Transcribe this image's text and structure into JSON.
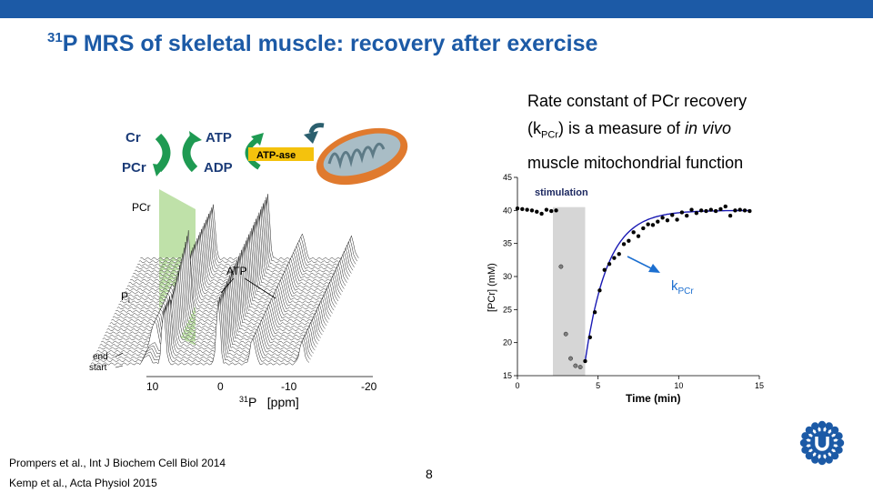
{
  "header": {
    "title_sup": "31",
    "title_text": "P MRS of skeletal muscle: recovery after exercise"
  },
  "description": {
    "line1": "Rate constant of PCr recovery",
    "line2_open": "(k",
    "line2_sub": "PCr",
    "line2_close": ") is a measure of ",
    "line2_italic": "in vivo",
    "line3": "muscle mitochondrial function"
  },
  "reaction_diagram": {
    "cr": "Cr",
    "pcr": "PCr",
    "atp": "ATP",
    "adp": "ADP",
    "atpase": "ATP-ase",
    "colors": {
      "arrow": "#1e9a52",
      "atpase_box": "#f4c20d",
      "mito": "#e07a2e"
    }
  },
  "spectrum": {
    "label_pcr": "PCr",
    "label_atp": "ATP",
    "label_pi": "P",
    "label_pi_sub": "i",
    "label_end": "end",
    "label_start": "start",
    "ticks": [
      "10",
      "0",
      "-10",
      "-20"
    ],
    "axis_sup": "31",
    "axis_label": "P   [ppm]",
    "highlight_color": "#b4dc9a"
  },
  "chart_data": {
    "type": "scatter",
    "title": "",
    "xlabel": "Time (min)",
    "ylabel": "[PCr] (mM)",
    "xlim": [
      0,
      15
    ],
    "ylim": [
      15,
      45
    ],
    "xticks": [
      0,
      5,
      10,
      15
    ],
    "yticks": [
      15,
      20,
      25,
      30,
      35,
      40,
      45
    ],
    "stimulation_label": "stimulation",
    "stimulation_range": [
      2.2,
      4.2
    ],
    "annotation_prefix": "k",
    "annotation_sub": "PCr",
    "baseline_points": [
      [
        0,
        40.3
      ],
      [
        0.3,
        40.2
      ],
      [
        0.6,
        40.1
      ],
      [
        0.9,
        40.0
      ],
      [
        1.2,
        39.8
      ],
      [
        1.5,
        39.5
      ],
      [
        1.8,
        40.1
      ],
      [
        2.1,
        39.9
      ],
      [
        2.4,
        40.0
      ]
    ],
    "stim_points": [
      [
        2.7,
        31.5
      ],
      [
        3.0,
        21.3
      ],
      [
        3.3,
        17.6
      ],
      [
        3.6,
        16.5
      ],
      [
        3.9,
        16.3
      ]
    ],
    "recovery_points": [
      [
        4.2,
        17.2
      ],
      [
        4.5,
        20.8
      ],
      [
        4.8,
        24.6
      ],
      [
        5.1,
        27.9
      ],
      [
        5.4,
        31.0
      ],
      [
        5.7,
        31.9
      ],
      [
        6.0,
        32.8
      ],
      [
        6.3,
        33.4
      ],
      [
        6.6,
        34.9
      ],
      [
        6.9,
        35.4
      ],
      [
        7.2,
        36.7
      ],
      [
        7.5,
        36.1
      ],
      [
        7.8,
        37.3
      ],
      [
        8.1,
        37.9
      ],
      [
        8.4,
        37.8
      ],
      [
        8.7,
        38.3
      ],
      [
        9.0,
        38.9
      ],
      [
        9.3,
        38.5
      ],
      [
        9.6,
        39.3
      ],
      [
        9.9,
        38.6
      ],
      [
        10.2,
        39.7
      ],
      [
        10.5,
        39.2
      ],
      [
        10.8,
        40.1
      ],
      [
        11.1,
        39.6
      ],
      [
        11.4,
        40.0
      ],
      [
        11.7,
        39.9
      ],
      [
        12.0,
        40.1
      ],
      [
        12.3,
        39.9
      ],
      [
        12.6,
        40.2
      ],
      [
        12.9,
        40.6
      ],
      [
        13.2,
        39.2
      ],
      [
        13.5,
        40.0
      ],
      [
        13.8,
        40.1
      ],
      [
        14.1,
        40.0
      ],
      [
        14.4,
        39.9
      ]
    ],
    "fit": {
      "start_x": 4.2,
      "start_y": 17.2,
      "plateau": 40.0,
      "rate_per_min": 0.72
    },
    "colors": {
      "fit_line": "#1a1ab4",
      "stim_band": "#d6d6d6",
      "point": "#000000",
      "stim_point": "#808080"
    }
  },
  "references": {
    "ref1": "Prompers et al., Int J Biochem Cell Biol 2014",
    "ref2": "Kemp et al., Acta Physiol 2015"
  },
  "page": {
    "number": "8"
  }
}
